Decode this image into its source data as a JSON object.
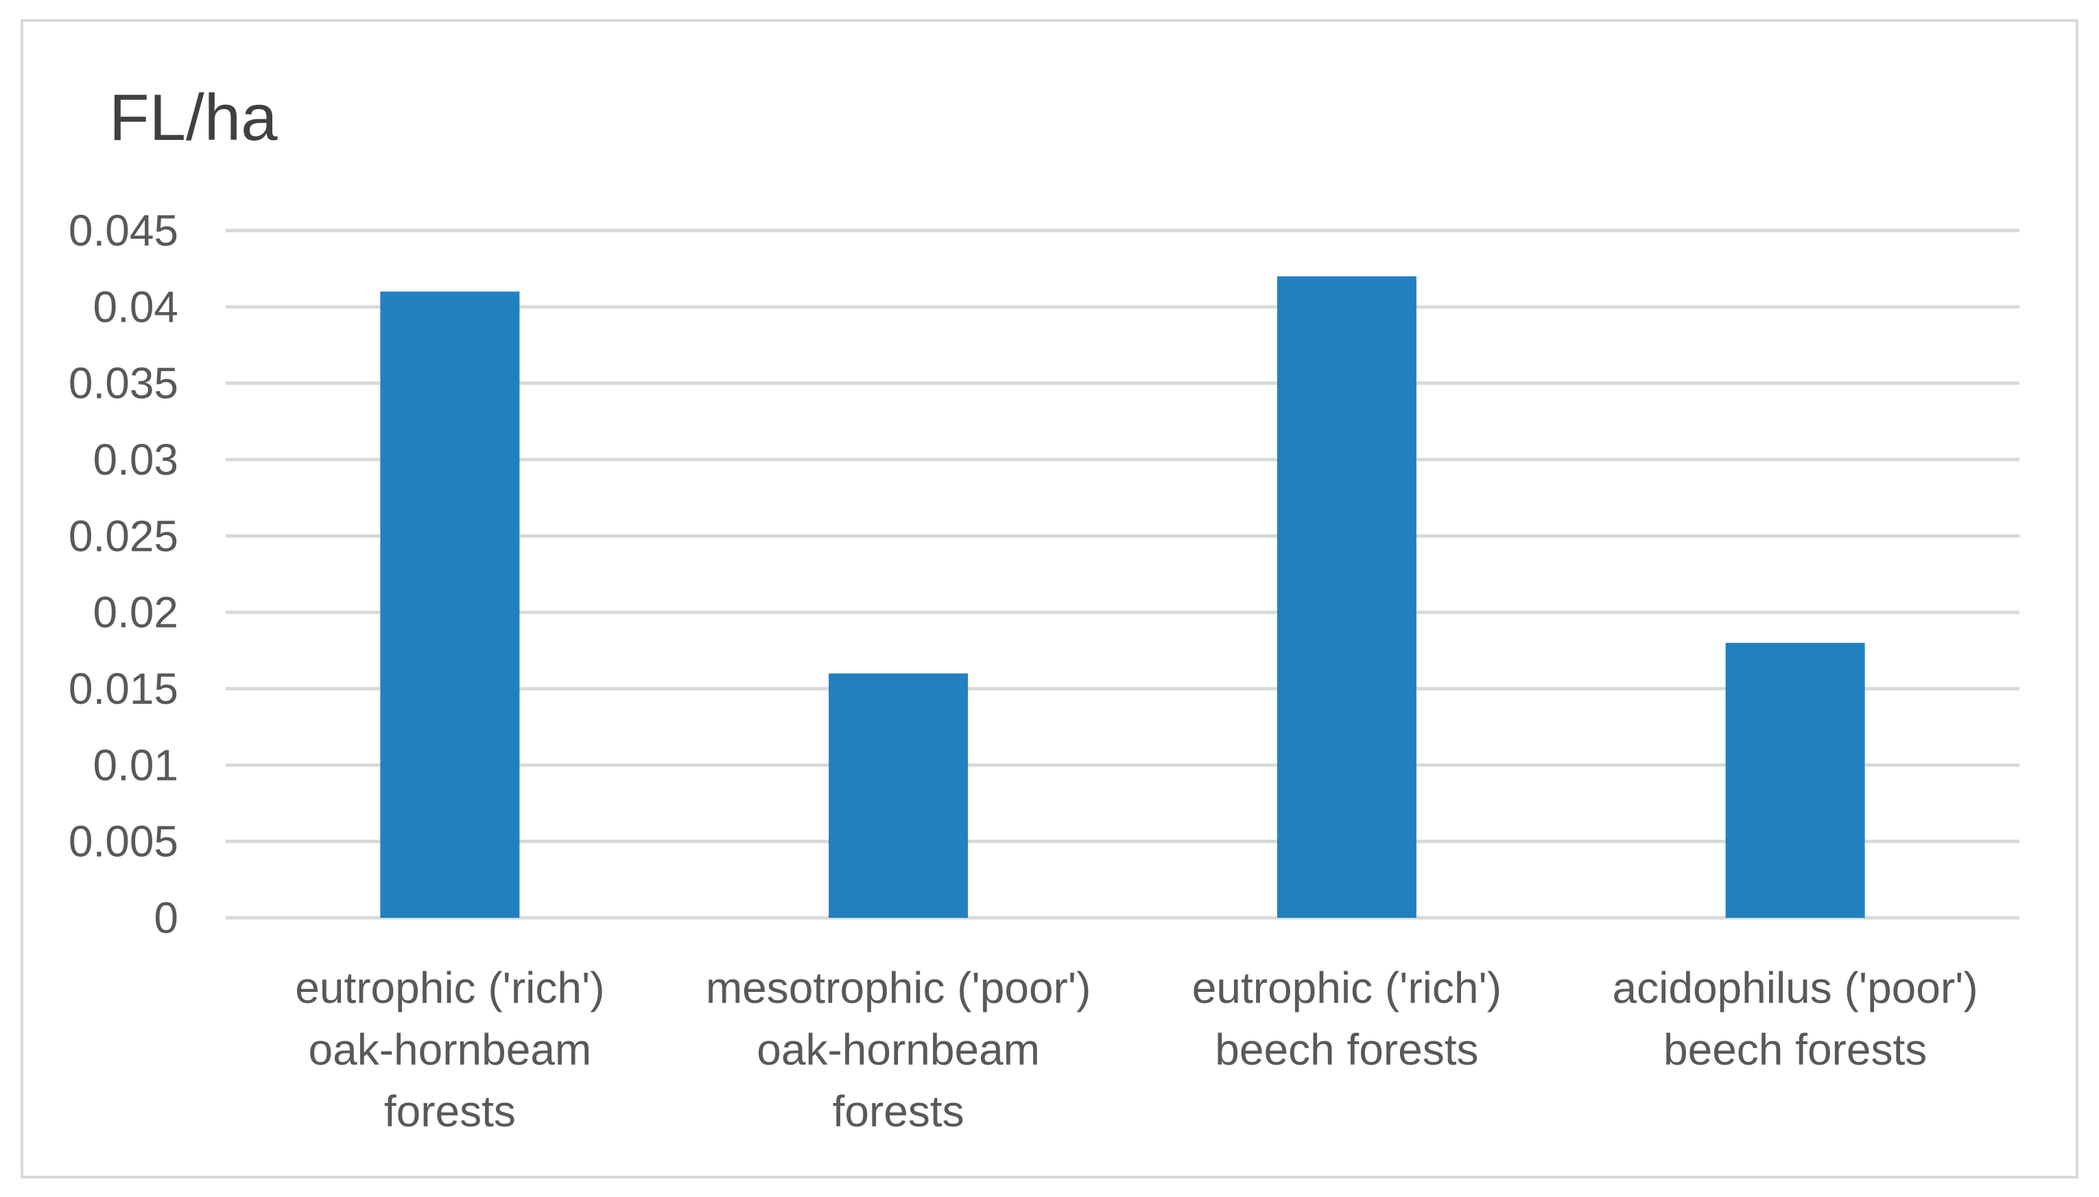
{
  "chart_data": {
    "type": "bar",
    "ylabel": "FL/ha",
    "categories": [
      [
        "eutrophic  ('rich')",
        "oak-hornbeam",
        "forests"
      ],
      [
        "mesotrophic ('poor')",
        "oak-hornbeam",
        "forests"
      ],
      [
        "eutrophic  ('rich')",
        "beech forests"
      ],
      [
        "acidophilus ('poor')",
        "beech forests"
      ]
    ],
    "values": [
      0.041,
      0.016,
      0.042,
      0.018
    ],
    "ylim": [
      0,
      0.045
    ],
    "yticks": [
      "0",
      "0.005",
      "0.01",
      "0.015",
      "0.02",
      "0.025",
      "0.03",
      "0.035",
      "0.04",
      "0.045"
    ],
    "grid": true,
    "legend": "none",
    "colors": {
      "bar": "#2280c1",
      "grid": "#d9d9d9",
      "text": "#595959",
      "frame": "#d9d9d9"
    }
  }
}
